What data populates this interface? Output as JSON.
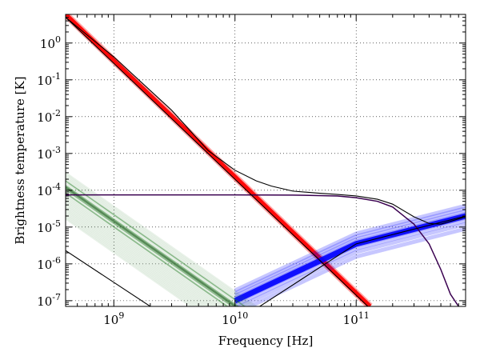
{
  "chart_data": {
    "type": "line",
    "xlabel": "Frequency [Hz]",
    "ylabel": "Brightness temperature [K]",
    "x_scale": "log",
    "y_scale": "log",
    "xlim": [
      400000000,
      800000000000
    ],
    "ylim": [
      7e-08,
      6
    ],
    "grid": true,
    "x_ticks": [
      {
        "value": 1000000000,
        "base": "10",
        "exp": "9"
      },
      {
        "value": 10000000000,
        "base": "10",
        "exp": "10"
      },
      {
        "value": 100000000000,
        "base": "10",
        "exp": "11"
      }
    ],
    "y_ticks": [
      {
        "value": 1,
        "base": "10",
        "exp": "0"
      },
      {
        "value": 0.1,
        "base": "10",
        "exp": "-1"
      },
      {
        "value": 0.01,
        "base": "10",
        "exp": "-2"
      },
      {
        "value": 0.001,
        "base": "10",
        "exp": "-3"
      },
      {
        "value": 0.0001,
        "base": "10",
        "exp": "-4"
      },
      {
        "value": 1e-05,
        "base": "10",
        "exp": "-5"
      },
      {
        "value": 1e-06,
        "base": "10",
        "exp": "-6"
      },
      {
        "value": 1e-07,
        "base": "10",
        "exp": "-7"
      }
    ],
    "series": [
      {
        "key": "red_band",
        "color": "#ff0000",
        "style": "band",
        "x": [
          400000000,
          130000000000
        ],
        "y": [
          6.0,
          7e-08
        ]
      },
      {
        "key": "blue_band",
        "color": "#0000ff",
        "style": "band",
        "x": [
          10000000000,
          100000000000,
          800000000000
        ],
        "y": [
          1e-07,
          3.5e-06,
          2e-05
        ]
      },
      {
        "key": "green_band",
        "color": "#1e7a1e",
        "style": "band",
        "x": [
          400000000,
          15000000000
        ],
        "y": [
          0.0003,
          7e-08
        ]
      },
      {
        "key": "total_black",
        "color": "#000000",
        "style": "line",
        "x": [
          400000000,
          1000000000,
          3000000000,
          6000000000,
          10000000000,
          15000000000,
          20000000000,
          30000000000,
          50000000000,
          70000000000,
          100000000000,
          150000000000,
          200000000000,
          300000000000,
          400000000000,
          500000000000,
          800000000000
        ],
        "y": [
          5.0,
          0.42,
          0.015,
          0.0012,
          0.00035,
          0.00018,
          0.00013,
          9.5e-05,
          8.3e-05,
          7.7e-05,
          7e-05,
          5.7e-05,
          4.2e-05,
          1.9e-05,
          1.25e-05,
          1.2e-05,
          1.9e-05
        ]
      },
      {
        "key": "flat_purple",
        "color": "#3a0050",
        "style": "line",
        "x": [
          400000000,
          1000000000,
          10000000000,
          30000000000,
          70000000000,
          100000000000,
          150000000000,
          200000000000,
          300000000000,
          400000000000,
          500000000000,
          600000000000,
          700000000000,
          760000000000
        ],
        "y": [
          7.5e-05,
          7.5e-05,
          7.5e-05,
          7.4e-05,
          7e-05,
          6.3e-05,
          5e-05,
          3.5e-05,
          1.2e-05,
          3.5e-06,
          7e-07,
          1.5e-07,
          7e-08,
          4e-08
        ]
      },
      {
        "key": "low_black",
        "color": "#000000",
        "style": "line",
        "x": [
          400000000,
          2000000000
        ],
        "y": [
          2.3e-06,
          7e-08
        ]
      },
      {
        "key": "blue_black",
        "color": "#000000",
        "style": "line",
        "x": [
          16000000000,
          100000000000,
          800000000000
        ],
        "y": [
          7e-08,
          3.5e-06,
          2e-05
        ]
      },
      {
        "key": "red_black",
        "color": "#000000",
        "style": "line",
        "x": [
          400000000,
          125000000000
        ],
        "y": [
          5.0,
          7e-08
        ]
      }
    ]
  }
}
